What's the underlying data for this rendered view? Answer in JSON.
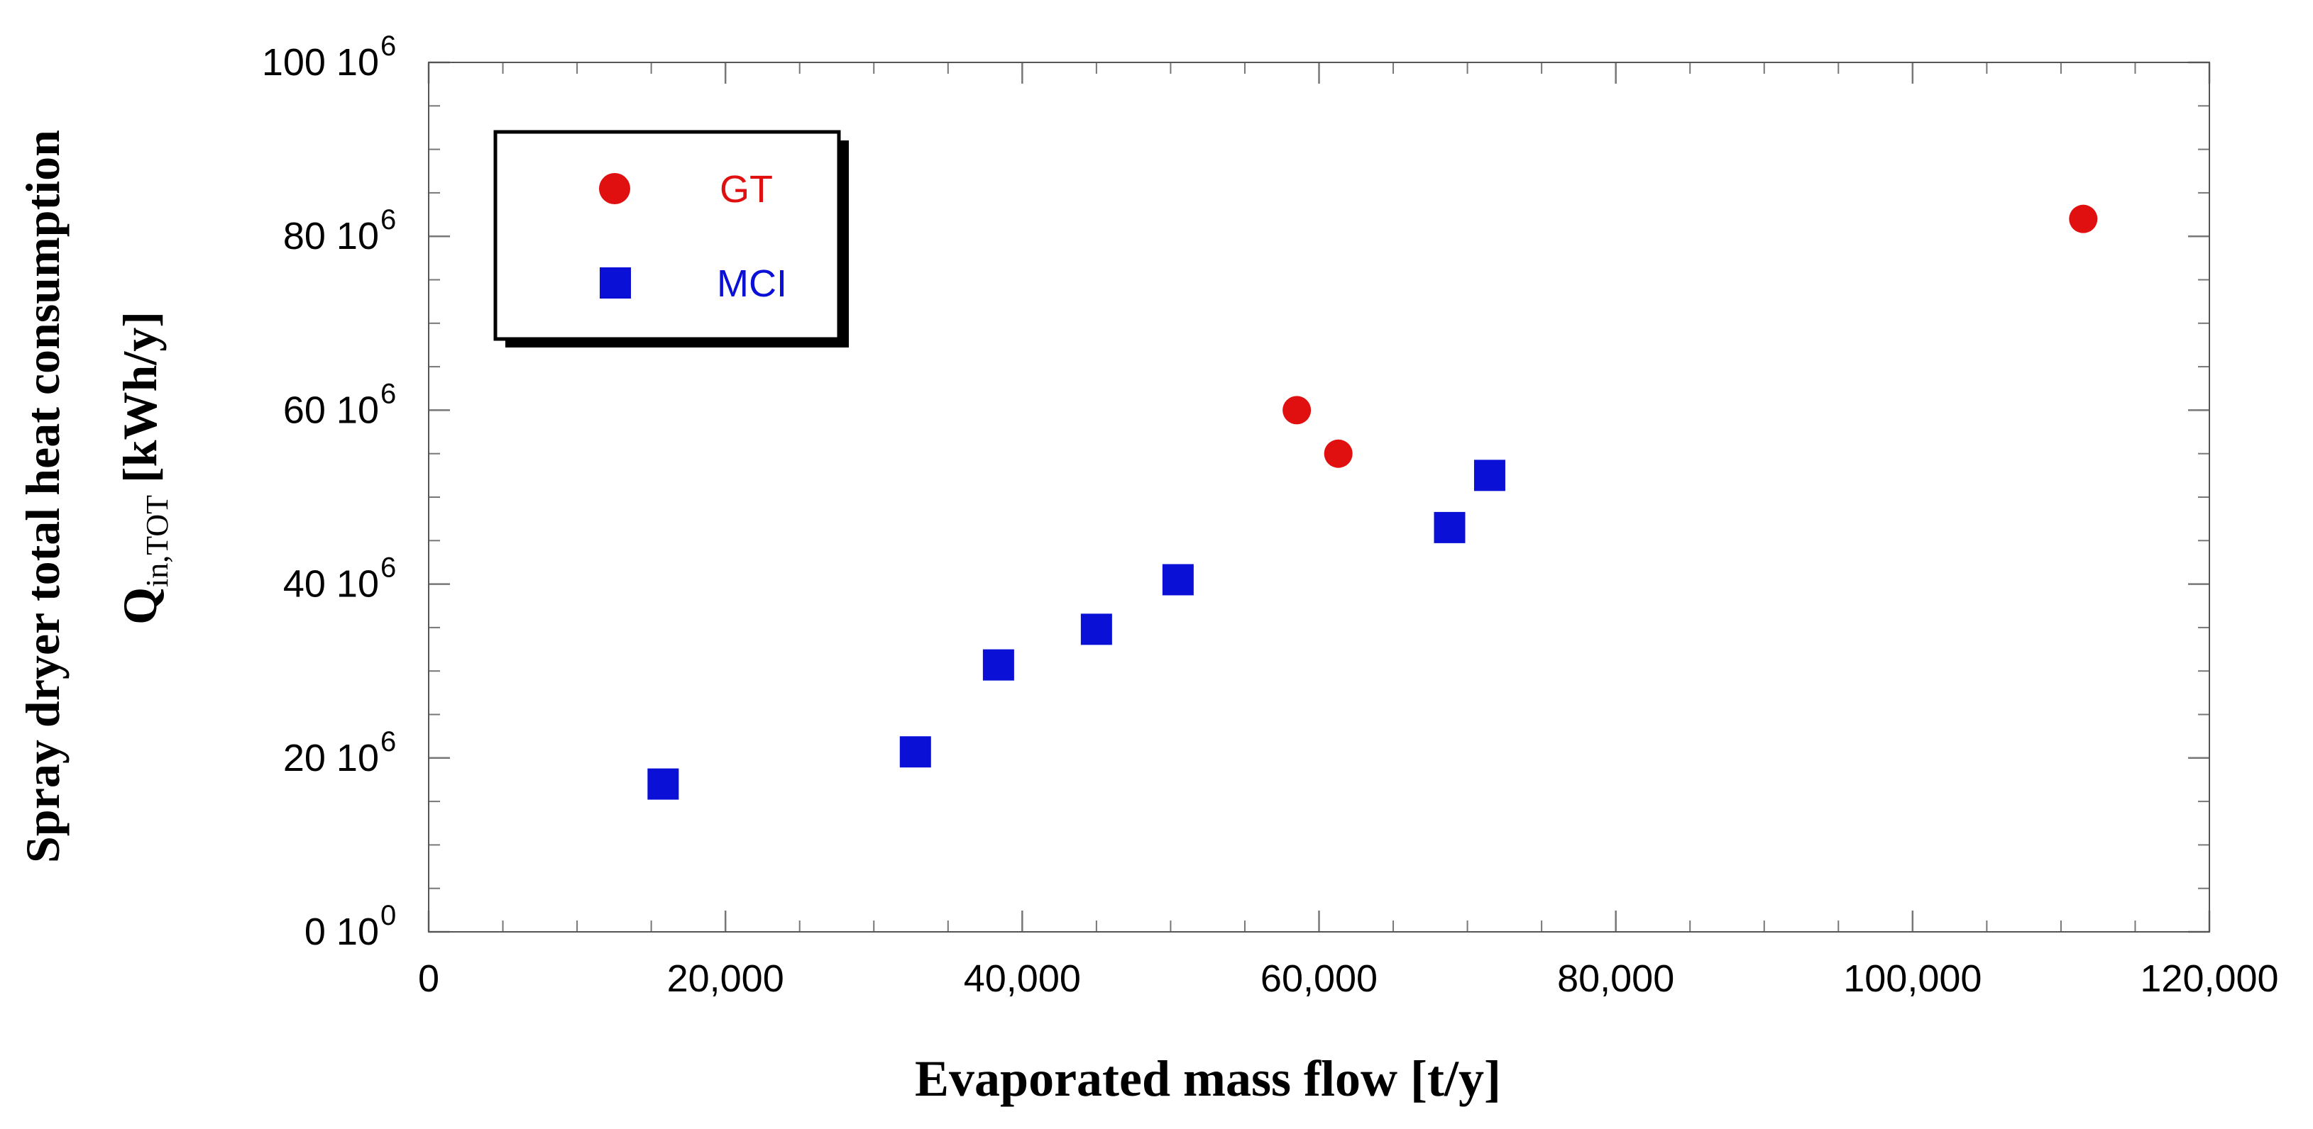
{
  "chart_data": {
    "type": "scatter",
    "title": "",
    "xlabel": "Evaporated mass flow [t/y]",
    "ylabel_line1": "Spray dryer total heat consumption",
    "ylabel_q": "Q",
    "ylabel_q_sub": "in,TOT",
    "ylabel_units": " [kWh/y]",
    "xlim": [
      0,
      120000
    ],
    "ylim": [
      0,
      100000000
    ],
    "x_ticks": [
      {
        "value": 0,
        "label": "0"
      },
      {
        "value": 20000,
        "label": "20,000"
      },
      {
        "value": 40000,
        "label": "40,000"
      },
      {
        "value": 60000,
        "label": "60,000"
      },
      {
        "value": 80000,
        "label": "80,000"
      },
      {
        "value": 100000,
        "label": "100,000"
      },
      {
        "value": 120000,
        "label": "120,000"
      }
    ],
    "y_ticks": [
      {
        "value": 0,
        "mantissa": "0 10",
        "exponent": "0"
      },
      {
        "value": 20000000,
        "mantissa": "20 10",
        "exponent": "6"
      },
      {
        "value": 40000000,
        "mantissa": "40 10",
        "exponent": "6"
      },
      {
        "value": 60000000,
        "mantissa": "60 10",
        "exponent": "6"
      },
      {
        "value": 80000000,
        "mantissa": "80 10",
        "exponent": "6"
      },
      {
        "value": 100000000,
        "mantissa": "100 10",
        "exponent": "6"
      }
    ],
    "x_minor_step": 5000,
    "y_minor_step": 5000000,
    "grid": false,
    "legend_position": "top-left",
    "series": [
      {
        "name": "GT",
        "marker": "circle",
        "color": "#e01010",
        "points": [
          {
            "x": 58500,
            "y": 60000000
          },
          {
            "x": 61300,
            "y": 55000000
          },
          {
            "x": 111500,
            "y": 82000000
          }
        ]
      },
      {
        "name": "MCI",
        "marker": "square",
        "color": "#0a10d6",
        "points": [
          {
            "x": 15800,
            "y": 17000000
          },
          {
            "x": 32800,
            "y": 20700000
          },
          {
            "x": 38400,
            "y": 30700000
          },
          {
            "x": 45000,
            "y": 34800000
          },
          {
            "x": 50500,
            "y": 40500000
          },
          {
            "x": 68800,
            "y": 46500000
          },
          {
            "x": 71500,
            "y": 52500000
          }
        ]
      }
    ]
  }
}
